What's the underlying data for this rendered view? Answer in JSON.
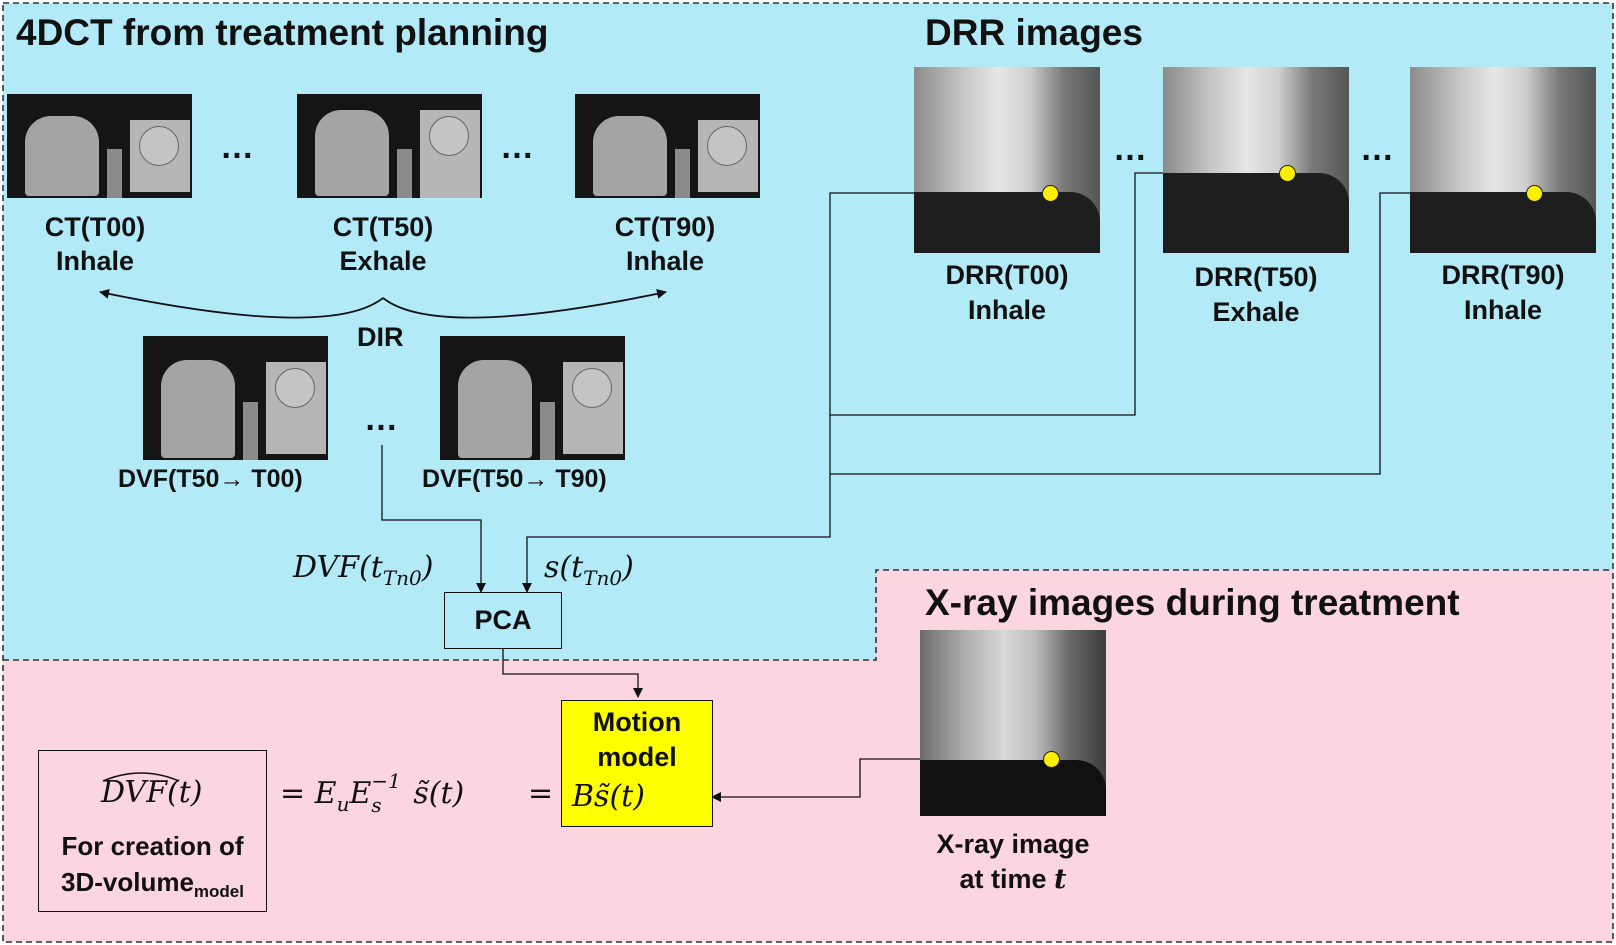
{
  "sections": {
    "planning_title": "4DCT from treatment planning",
    "drr_title": "DRR images",
    "treatment_title": "X-ray images during treatment"
  },
  "colors": {
    "planning_bg": "#b3eaf8",
    "treatment_bg": "#fbd5df",
    "motion_model_fill": "#ffff00",
    "marker_dot": "#ffee00",
    "dvf_arrows": "#d81f1f"
  },
  "ct_images": [
    {
      "line1": "CT(T00)",
      "line2": "Inhale"
    },
    {
      "line1": "CT(T50)",
      "line2": "Exhale"
    },
    {
      "line1": "CT(T90)",
      "line2": "Inhale"
    }
  ],
  "dir_label": "DIR",
  "dvf_images": [
    {
      "label": "DVF(T50→ T00)"
    },
    {
      "label": "DVF(T50→ T90)"
    }
  ],
  "drr_images": [
    {
      "line1": "DRR(T00)",
      "line2": "Inhale"
    },
    {
      "line1": "DRR(T50)",
      "line2": "Exhale"
    },
    {
      "line1": "DRR(T90)",
      "line2": "Inhale"
    }
  ],
  "ellipsis": "…",
  "math": {
    "dvf_input": "DVF(t",
    "dvf_sub": "Tn0",
    "s_input": "s(t",
    "s_sub": "Tn0",
    "close_paren": ")",
    "dvf_hat_text": "DVF",
    "dvf_hat_arg": "(t)",
    "equation_part": "= E",
    "eq_u": "u",
    "eq_E2": "E",
    "eq_s_sub": "s",
    "eq_sup": "−1",
    "eq_tilde_s": "s̃(t)",
    "eq_equals": "=",
    "b_s_tilde": "Bs̃(t)"
  },
  "pca_label": "PCA",
  "motion_model": {
    "line1": "Motion",
    "line2": "model"
  },
  "creation_box": {
    "line1": "For creation of",
    "line2_main": "3D-volume",
    "line2_sub": "model"
  },
  "xray_image": {
    "line1": "X-ray image",
    "line2_prefix": "at time ",
    "line2_var": "t"
  }
}
